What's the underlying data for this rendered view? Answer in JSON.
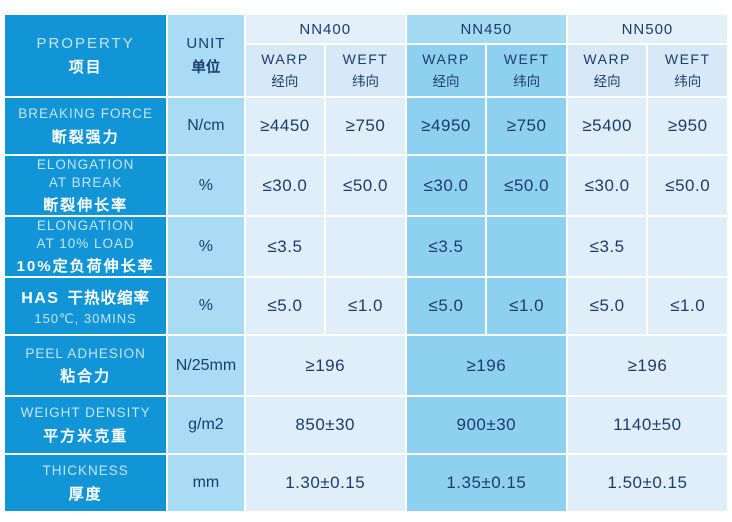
{
  "colors": {
    "brand_blue": "#1295d6",
    "unit_column": "#a9dcf4",
    "light_band": "#e3f0fa",
    "light_subhead": "#d7e9f6",
    "light_cell": "#dfeef9",
    "mid_band": "#a5daf3",
    "mid_cell": "#8ed0f0",
    "navy_text": "#1d3c6e",
    "property_en_text": "#c3e4f5",
    "white_text": "#ffffff"
  },
  "header": {
    "property": {
      "en": "PROPERTY",
      "zh": "项目"
    },
    "unit": {
      "en": "UNIT",
      "zh": "单位"
    },
    "products": [
      {
        "name": "NN400",
        "warp_en": "WARP",
        "warp_zh": "经向",
        "weft_en": "WEFT",
        "weft_zh": "纬向"
      },
      {
        "name": "NN450",
        "warp_en": "WARP",
        "warp_zh": "经向",
        "weft_en": "WEFT",
        "weft_zh": "纬向"
      },
      {
        "name": "NN500",
        "warp_en": "WARP",
        "warp_zh": "经向",
        "weft_en": "WEFT",
        "weft_zh": "纬向"
      }
    ]
  },
  "rows": [
    {
      "label_en": "BREAKING FORCE",
      "label_zh": "断裂强力",
      "unit": "N/cm",
      "values": [
        "≥4450",
        "≥750",
        "≥4950",
        "≥750",
        "≥5400",
        "≥950"
      ]
    },
    {
      "label_en": "ELONGATION\nAT BREAK",
      "label_zh": "断裂伸长率",
      "unit": "%",
      "values": [
        "≤30.0",
        "≤50.0",
        "≤30.0",
        "≤50.0",
        "≤30.0",
        "≤50.0"
      ]
    },
    {
      "label_en": "ELONGATION\nAT 10% LOAD",
      "label_zh": "10%定负荷伸长率",
      "unit": "%",
      "values": [
        "≤3.5",
        "",
        "≤3.5",
        "",
        "≤3.5",
        ""
      ]
    },
    {
      "label_en": "HAS",
      "label_zh": "干热收缩率",
      "label_sub": "150℃, 30MINS",
      "unit": "%",
      "values": [
        "≤5.0",
        "≤1.0",
        "≤5.0",
        "≤1.0",
        "≤5.0",
        "≤1.0"
      ]
    },
    {
      "label_en": "PEEL ADHESION",
      "label_zh": "粘合力",
      "unit": "N/25mm",
      "values": [
        "≥196",
        "≥196",
        "≥196"
      ],
      "merged": true
    },
    {
      "label_en": "WEIGHT DENSITY",
      "label_zh": "平方米克重",
      "unit": "g/m2",
      "values": [
        "850±30",
        "900±30",
        "1140±50"
      ],
      "merged": true
    },
    {
      "label_en": "THICKNESS",
      "label_zh": "厚度",
      "unit": "mm",
      "values": [
        "1.30±0.15",
        "1.35±0.15",
        "1.50±0.15"
      ],
      "merged": true
    }
  ],
  "chart_data": {
    "type": "table",
    "columns": [
      "PROPERTY 项目",
      "UNIT 单位",
      "NN400 WARP 经向",
      "NN400 WEFT 纬向",
      "NN450 WARP 经向",
      "NN450 WEFT 纬向",
      "NN500 WARP 经向",
      "NN500 WEFT 纬向"
    ],
    "rows": [
      [
        "BREAKING FORCE 断裂强力",
        "N/cm",
        "≥4450",
        "≥750",
        "≥4950",
        "≥750",
        "≥5400",
        "≥950"
      ],
      [
        "ELONGATION AT BREAK 断裂伸长率",
        "%",
        "≤30.0",
        "≤50.0",
        "≤30.0",
        "≤50.0",
        "≤30.0",
        "≤50.0"
      ],
      [
        "ELONGATION AT 10% LOAD 10%定负荷伸长率",
        "%",
        "≤3.5",
        "",
        "≤3.5",
        "",
        "≤3.5",
        ""
      ],
      [
        "HAS 干热收缩率 150℃, 30MINS",
        "%",
        "≤5.0",
        "≤1.0",
        "≤5.0",
        "≤1.0",
        "≤5.0",
        "≤1.0"
      ],
      [
        "PEEL ADHESION 粘合力",
        "N/25mm",
        "≥196",
        "≥196",
        "≥196",
        "≥196",
        "≥196",
        "≥196"
      ],
      [
        "WEIGHT DENSITY 平方米克重",
        "g/m2",
        "850±30",
        "850±30",
        "900±30",
        "900±30",
        "1140±50",
        "1140±50"
      ],
      [
        "THICKNESS 厚度",
        "mm",
        "1.30±0.15",
        "1.30±0.15",
        "1.35±0.15",
        "1.35±0.15",
        "1.50±0.15",
        "1.50±0.15"
      ]
    ]
  }
}
